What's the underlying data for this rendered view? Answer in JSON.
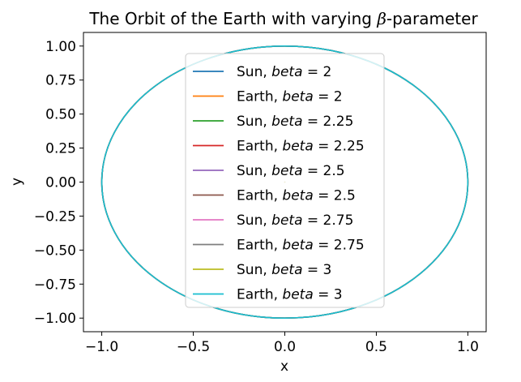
{
  "chart_data": {
    "type": "line",
    "title_prefix": "The Orbit of the Earth with varying ",
    "title_symbol": "β",
    "title_suffix": "-parameter",
    "xlabel": "x",
    "ylabel": "y",
    "xlim": [
      -1.1,
      1.1
    ],
    "ylim": [
      -1.1,
      1.1
    ],
    "xticks": [
      -1.0,
      -0.5,
      0.0,
      0.5,
      1.0
    ],
    "xtick_labels": [
      "−1.0",
      "−0.5",
      "0.0",
      "0.5",
      "1.0"
    ],
    "yticks": [
      1.0,
      0.75,
      0.5,
      0.25,
      0.0,
      -0.25,
      -0.5,
      -0.75,
      -1.0
    ],
    "ytick_labels": [
      "1.00",
      "0.75",
      "0.50",
      "0.25",
      "0.00",
      "−0.25",
      "−0.50",
      "−0.75",
      "−1.00"
    ],
    "grid": false,
    "legend_position": "center",
    "orbit_radius": 1.0,
    "series": [
      {
        "name_prefix": "Sun, ",
        "name_var": "beta",
        "name_value": "2",
        "color": "#1f77b4",
        "cx": 0,
        "cy": 0,
        "r": 0
      },
      {
        "name_prefix": "Earth, ",
        "name_var": "beta",
        "name_value": "2",
        "color": "#ff7f0e",
        "cx": 0,
        "cy": 0,
        "r": 1
      },
      {
        "name_prefix": "Sun, ",
        "name_var": "beta",
        "name_value": "2.25",
        "color": "#2ca02c",
        "cx": 0,
        "cy": 0,
        "r": 0
      },
      {
        "name_prefix": "Earth, ",
        "name_var": "beta",
        "name_value": "2.25",
        "color": "#d62728",
        "cx": 0,
        "cy": 0,
        "r": 1
      },
      {
        "name_prefix": "Sun, ",
        "name_var": "beta",
        "name_value": "2.5",
        "color": "#9467bd",
        "cx": 0,
        "cy": 0,
        "r": 0
      },
      {
        "name_prefix": "Earth, ",
        "name_var": "beta",
        "name_value": "2.5",
        "color": "#8c564b",
        "cx": 0,
        "cy": 0,
        "r": 1
      },
      {
        "name_prefix": "Sun, ",
        "name_var": "beta",
        "name_value": "2.75",
        "color": "#e377c2",
        "cx": 0,
        "cy": 0,
        "r": 0
      },
      {
        "name_prefix": "Earth, ",
        "name_var": "beta",
        "name_value": "2.75",
        "color": "#7f7f7f",
        "cx": 0,
        "cy": 0,
        "r": 1
      },
      {
        "name_prefix": "Sun, ",
        "name_var": "beta",
        "name_value": "3",
        "color": "#bcbd22",
        "cx": 0,
        "cy": 0,
        "r": 0
      },
      {
        "name_prefix": "Earth, ",
        "name_var": "beta",
        "name_value": "3",
        "color": "#17becf",
        "cx": 0,
        "cy": 0,
        "r": 1
      }
    ]
  }
}
